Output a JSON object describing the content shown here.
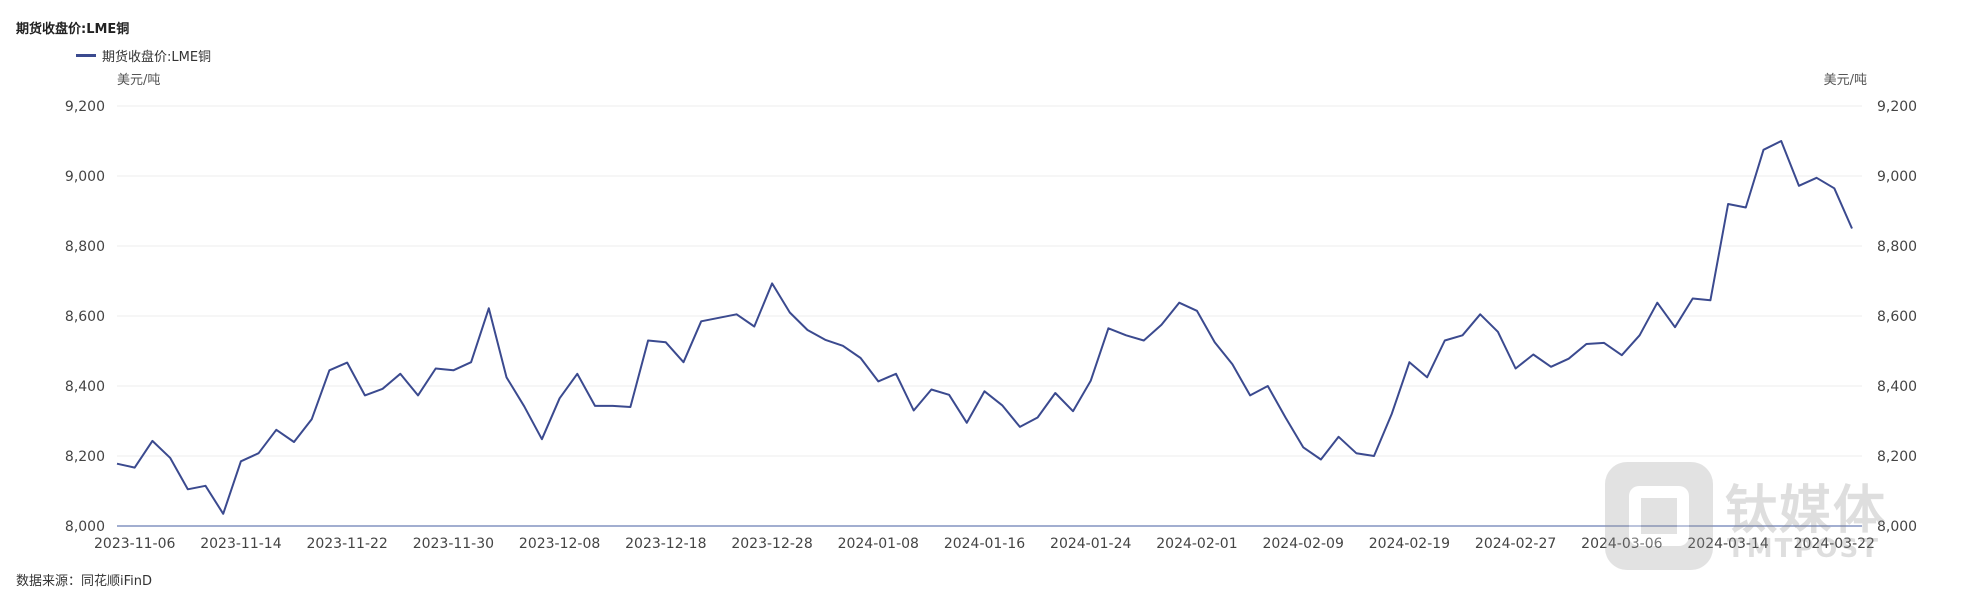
{
  "chart_title": "期货收盘价:LME铜",
  "source": "数据来源：同花顺iFinD",
  "watermark": {
    "brand": "钛媒体",
    "brand_en": "TMTPOST"
  },
  "chart_data": {
    "type": "line",
    "title": "期货收盘价:LME铜",
    "y_unit_left": "美元/吨",
    "y_unit_right": "美元/吨",
    "ylim": [
      8000,
      9200
    ],
    "yticks": [
      "8,000",
      "8,200",
      "8,400",
      "8,600",
      "8,800",
      "9,000",
      "9,200"
    ],
    "ytick_values": [
      8000,
      8200,
      8400,
      8600,
      8800,
      9000,
      9200
    ],
    "xtick_labels": [
      "2023-11-06",
      "2023-11-14",
      "2023-11-22",
      "2023-11-30",
      "2023-12-08",
      "2023-12-18",
      "2023-12-28",
      "2024-01-08",
      "2024-01-16",
      "2024-01-24",
      "2024-02-01",
      "2024-02-09",
      "2024-02-19",
      "2024-02-27",
      "2024-03-06",
      "2024-03-14",
      "2024-03-22"
    ],
    "xtick_indices": [
      1,
      7,
      13,
      19,
      25,
      31,
      37,
      43,
      49,
      55,
      61,
      67,
      73,
      79,
      85,
      91,
      97
    ],
    "grid": true,
    "legend_position": "top-left",
    "series": [
      {
        "name": "期货收盘价:LME铜",
        "color": "#3b4a8f",
        "values": [
          8178,
          8167,
          8243,
          8195,
          8105,
          8115,
          8035,
          8185,
          8208,
          8275,
          8240,
          8305,
          8445,
          8467,
          8373,
          8392,
          8435,
          8373,
          8450,
          8445,
          8468,
          8622,
          8425,
          8342,
          8248,
          8365,
          8435,
          8343,
          8343,
          8340,
          8530,
          8525,
          8468,
          8585,
          8595,
          8605,
          8570,
          8693,
          8610,
          8560,
          8532,
          8515,
          8480,
          8413,
          8435,
          8330,
          8390,
          8375,
          8295,
          8385,
          8345,
          8283,
          8310,
          8380,
          8328,
          8415,
          8565,
          8545,
          8530,
          8575,
          8638,
          8615,
          8525,
          8462,
          8373,
          8400,
          8310,
          8225,
          8190,
          8255,
          8208,
          8200,
          8320,
          8468,
          8425,
          8530,
          8545,
          8605,
          8555,
          8450,
          8490,
          8455,
          8478,
          8520,
          8523,
          8488,
          8545,
          8638,
          8568,
          8650,
          8645,
          8920,
          8910,
          9075,
          9100,
          8972,
          8995,
          8965,
          8850
        ]
      }
    ]
  }
}
